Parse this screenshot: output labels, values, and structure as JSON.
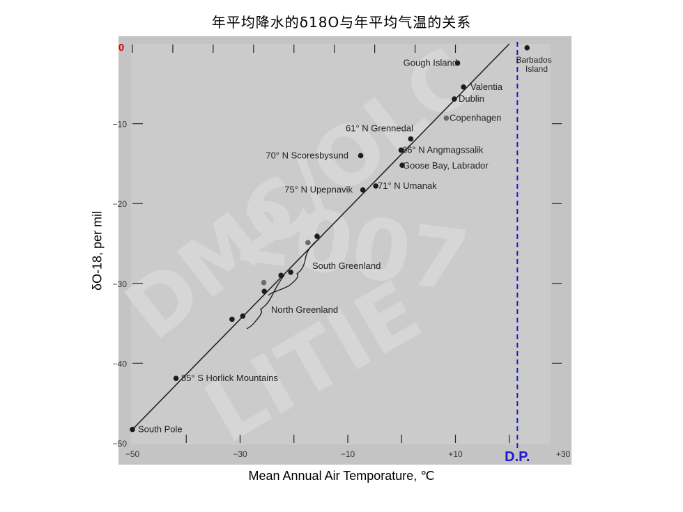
{
  "title": "年平均降水的δ18O与年平均气温的关系",
  "chart_data": {
    "type": "scatter",
    "title": "年平均降水的δ18O与年平均气温的关系",
    "xlabel": "Mean Annual Air Temporature, ℃",
    "ylabel": "δO-18, per mil",
    "xlim": [
      -50,
      30
    ],
    "ylim": [
      -50,
      0
    ],
    "x_ticks": [
      "−50",
      "−30",
      "−10",
      "+10",
      "+30"
    ],
    "y_ticks": [
      "−10",
      "−20",
      "−30",
      "−40",
      "−50"
    ],
    "y_zero_label": "0",
    "dp_label": "D.P.",
    "dp_x": 21.5,
    "trend_line": {
      "x": [
        -50,
        20.0
      ],
      "y": [
        -48.3,
        0
      ]
    },
    "points": [
      {
        "x": -50,
        "y": -48.3,
        "label": "South Pole"
      },
      {
        "x": -41.9,
        "y": -41.9,
        "label": "85° S Horlick Mountains"
      },
      {
        "x": -31.5,
        "y": -34.5,
        "label": ""
      },
      {
        "x": -29.5,
        "y": -34.1,
        "label": ""
      },
      {
        "x": -25.5,
        "y": -31.0,
        "label": ""
      },
      {
        "x": -25.6,
        "y": -29.9,
        "label": ""
      },
      {
        "x": -22.4,
        "y": -29.0,
        "label": ""
      },
      {
        "x": -20.6,
        "y": -28.6,
        "label": ""
      },
      {
        "x": -17.4,
        "y": -24.9,
        "label": ""
      },
      {
        "x": -15.7,
        "y": -24.1,
        "label": ""
      },
      {
        "x": -7.2,
        "y": -18.3,
        "label": "75° N Upepnavik"
      },
      {
        "x": -4.8,
        "y": -17.8,
        "label": "71° N Umanak"
      },
      {
        "x": -7.6,
        "y": -14.0,
        "label": "70° N Scoresbysund"
      },
      {
        "x": -0.1,
        "y": -13.3,
        "label": "66° N Angmagssalik"
      },
      {
        "x": 1.7,
        "y": -11.9,
        "label": "61° N Grennedal"
      },
      {
        "x": 0.1,
        "y": -15.2,
        "label": "Goose Bay, Labrador"
      },
      {
        "x": 8.3,
        "y": -9.3,
        "label": "Copenhagen"
      },
      {
        "x": 9.8,
        "y": -6.9,
        "label": "Dublin"
      },
      {
        "x": 11.5,
        "y": -5.4,
        "label": "Valentia"
      },
      {
        "x": 10.4,
        "y": -2.4,
        "label": "Gough Island"
      },
      {
        "x": 23.3,
        "y": -0.5,
        "label": "Barbados Island"
      }
    ],
    "brackets": [
      {
        "label": "South Greenland"
      },
      {
        "label": "North Greenland"
      }
    ],
    "watermark": "DMC/OLC 2007 LITIE",
    "grid": false,
    "legend": "none"
  }
}
